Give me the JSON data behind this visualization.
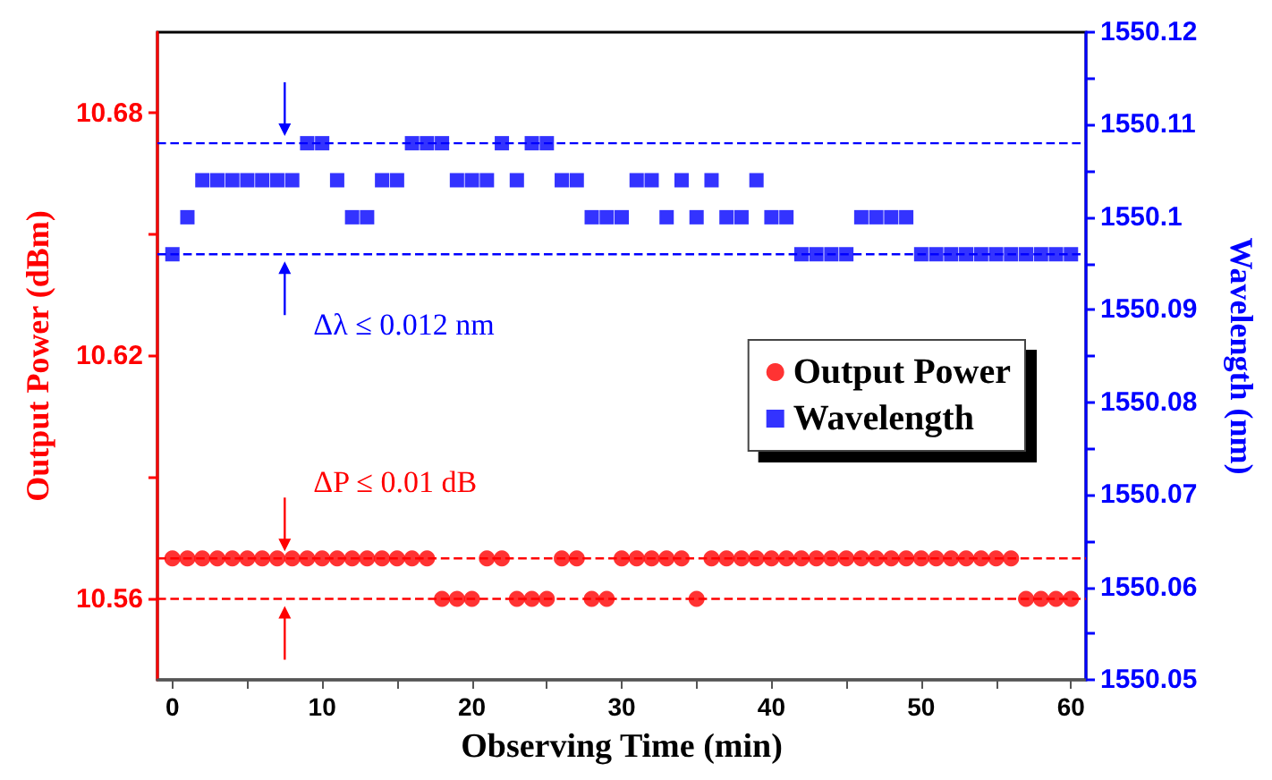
{
  "chart_data": {
    "type": "scatter",
    "xlabel": "Observing Time (min)",
    "ylabel": "Output Power (dBm)",
    "y2label": "Wavelength (nm)",
    "x": [
      0,
      1,
      2,
      3,
      4,
      5,
      6,
      7,
      8,
      9,
      10,
      11,
      12,
      13,
      14,
      15,
      16,
      17,
      18,
      19,
      20,
      21,
      22,
      23,
      24,
      25,
      26,
      27,
      28,
      29,
      30,
      31,
      32,
      33,
      34,
      35,
      36,
      37,
      38,
      39,
      40,
      41,
      42,
      43,
      44,
      45,
      46,
      47,
      48,
      49,
      50,
      51,
      52,
      53,
      54,
      55,
      56,
      57,
      58,
      59,
      60
    ],
    "series": [
      {
        "name": "Output Power",
        "color": "#ff0000",
        "marker": "circle",
        "values": [
          10.57,
          10.57,
          10.57,
          10.57,
          10.57,
          10.57,
          10.57,
          10.57,
          10.57,
          10.57,
          10.57,
          10.57,
          10.57,
          10.57,
          10.57,
          10.57,
          10.57,
          10.57,
          10.56,
          10.56,
          10.56,
          10.57,
          10.57,
          10.56,
          10.56,
          10.56,
          10.57,
          10.57,
          10.56,
          10.56,
          10.57,
          10.57,
          10.57,
          10.57,
          10.57,
          10.56,
          10.57,
          10.57,
          10.57,
          10.57,
          10.57,
          10.57,
          10.57,
          10.57,
          10.57,
          10.57,
          10.57,
          10.57,
          10.57,
          10.57,
          10.57,
          10.57,
          10.57,
          10.57,
          10.57,
          10.57,
          10.57,
          10.56,
          10.56,
          10.56,
          10.56
        ]
      },
      {
        "name": "Wavelength",
        "color": "#0000ff",
        "marker": "square",
        "axis": "y2",
        "values": [
          1550.096,
          1550.1,
          1550.104,
          1550.104,
          1550.104,
          1550.104,
          1550.104,
          1550.104,
          1550.104,
          1550.108,
          1550.108,
          1550.104,
          1550.1,
          1550.1,
          1550.104,
          1550.104,
          1550.108,
          1550.108,
          1550.108,
          1550.104,
          1550.104,
          1550.104,
          1550.108,
          1550.104,
          1550.108,
          1550.108,
          1550.104,
          1550.104,
          1550.1,
          1550.1,
          1550.1,
          1550.104,
          1550.104,
          1550.1,
          1550.104,
          1550.1,
          1550.104,
          1550.1,
          1550.1,
          1550.104,
          1550.1,
          1550.1,
          1550.096,
          1550.096,
          1550.096,
          1550.096,
          1550.1,
          1550.1,
          1550.1,
          1550.1,
          1550.096,
          1550.096,
          1550.096,
          1550.096,
          1550.096,
          1550.096,
          1550.096,
          1550.096,
          1550.096,
          1550.096,
          1550.096
        ]
      }
    ],
    "xlim": [
      -1,
      61
    ],
    "xticks": [
      0,
      {
        "value": 5,
        "label": null
      },
      10,
      {
        "value": 15,
        "label": null
      },
      20,
      {
        "value": 25,
        "label": null
      },
      30,
      {
        "value": 35,
        "label": null
      },
      40,
      {
        "value": 45,
        "label": null
      },
      50,
      {
        "value": 55,
        "label": null
      },
      60
    ],
    "ylim": [
      10.54,
      10.7
    ],
    "yticks": [
      10.56,
      {
        "value": 10.59,
        "label": null
      },
      10.62,
      {
        "value": 10.65,
        "label": null
      },
      10.68
    ],
    "y2lim": [
      1550.05,
      1550.12
    ],
    "y2ticks": [
      1550.05,
      {
        "value": 1550.055,
        "label": null
      },
      1550.06,
      {
        "value": 1550.065,
        "label": null
      },
      1550.07,
      {
        "value": 1550.075,
        "label": null
      },
      1550.08,
      {
        "value": 1550.085,
        "label": null
      },
      1550.09,
      {
        "value": 1550.095,
        "label": null
      },
      1550.1,
      {
        "value": 1550.105,
        "label": null
      },
      1550.11,
      {
        "value": 1550.115,
        "label": null
      },
      1550.12
    ],
    "ref_lines": [
      {
        "axis": "y2",
        "value": 1550.108,
        "color": "#0000ff",
        "line_style": "dashed"
      },
      {
        "axis": "y2",
        "value": 1550.096,
        "color": "#0000ff",
        "line_style": "dashed"
      },
      {
        "axis": "y",
        "value": 10.57,
        "color": "#ff0000",
        "line_style": "dashed"
      },
      {
        "axis": "y",
        "value": 10.56,
        "color": "#ff0000",
        "line_style": "dashed"
      }
    ],
    "annotations": [
      "Δλ ≤ 0.012 nm",
      "ΔP ≤ 0.01 dB"
    ],
    "legend": "right",
    "grid": false
  }
}
